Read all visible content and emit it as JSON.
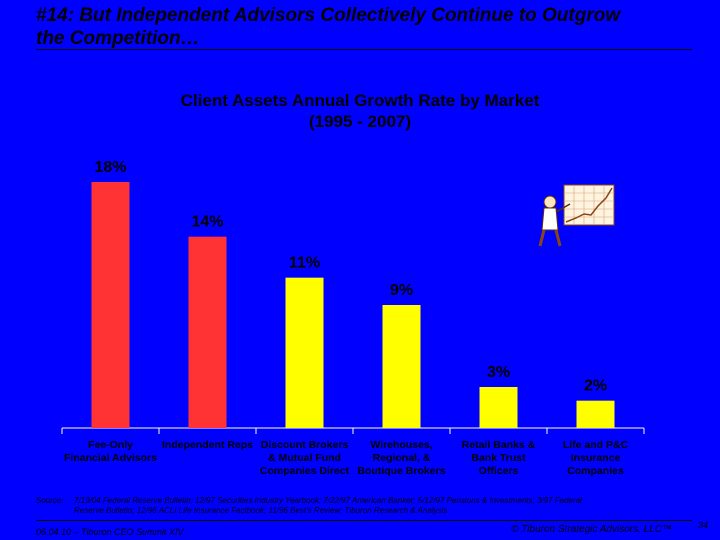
{
  "slide": {
    "title_line1": "#14: But Independent Advisors Collectively Continue to Outgrow",
    "title_line2": "the Competition…"
  },
  "chart_data": {
    "type": "bar",
    "title_line1": "Client Assets Annual Growth Rate by Market",
    "title_line2": "(1995 - 2007)",
    "categories": [
      [
        "Fee-Only",
        "Financial Advisors"
      ],
      [
        "Independent Reps"
      ],
      [
        "Discount Brokers",
        "& Mutual Fund",
        "Companies Direct"
      ],
      [
        "Wirehouses,",
        "Regional, &",
        "Boutique Brokers"
      ],
      [
        "Retail Banks &",
        "Bank Trust",
        "Officers"
      ],
      [
        "Life and P&C",
        "Insurance",
        "Companies"
      ]
    ],
    "values": [
      18,
      14,
      11,
      9,
      3,
      2
    ],
    "value_labels": [
      "18%",
      "14%",
      "11%",
      "9%",
      "3%",
      "2%"
    ],
    "bar_colors": [
      "#FF3333",
      "#FF3333",
      "#FFFF00",
      "#FFFF00",
      "#FFFF00",
      "#FFFF00"
    ],
    "ylim": [
      0,
      18
    ],
    "xlabel": "",
    "ylabel": ""
  },
  "source": {
    "label": "Source:",
    "line1": "7/19/04 Federal Reserve Bulletin; 12/97 Securities Industry Yearbook; 7/22/97 American Banker; 5/12/97 Pensions & Investments; 3/97 Federal",
    "line2": "Reserve Bulletin; 12/96 ACLI Life Insurance Factbook; 11/96 Best's Review; Tiburon Research & Analysis"
  },
  "footer": {
    "left": "06.04.10 – Tiburon CEO Summit XIV",
    "right": "© Tiburon Strategic Advisors, LLC™",
    "page": "34"
  },
  "colors": {
    "background": "#0000FF",
    "red_bar": "#FF3333",
    "yellow_bar": "#FFFF00",
    "axis": "#FFFFFF"
  }
}
